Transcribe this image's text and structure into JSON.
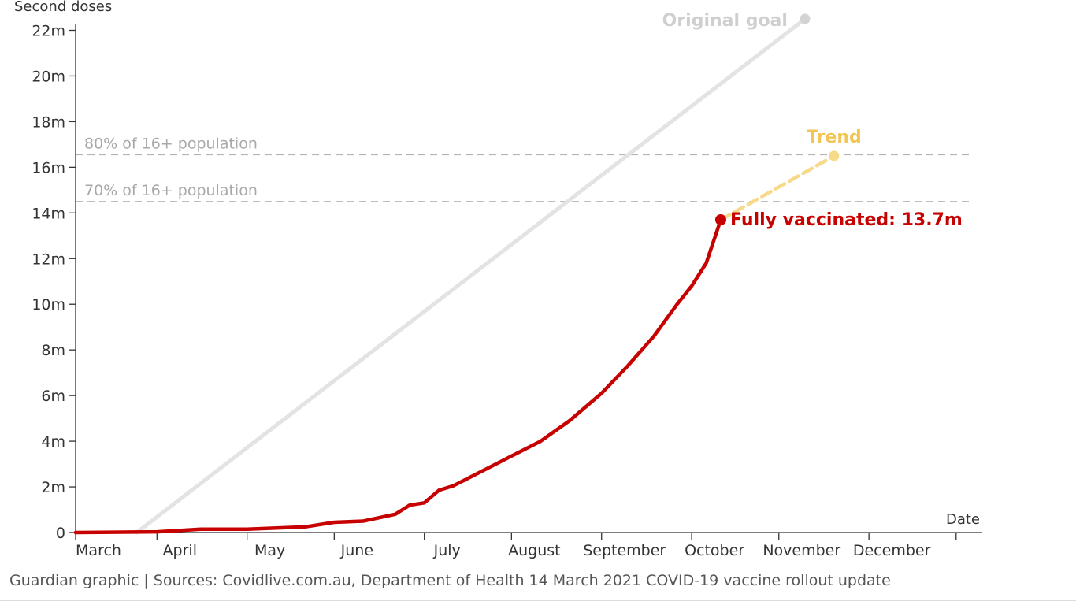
{
  "chart_data": {
    "type": "line",
    "ylabel": "Second doses",
    "xlabel": "Date",
    "ylim": [
      0,
      22500000
    ],
    "yticks": [
      {
        "value": 0,
        "label": "0"
      },
      {
        "value": 2000000,
        "label": "2m"
      },
      {
        "value": 4000000,
        "label": "4m"
      },
      {
        "value": 6000000,
        "label": "6m"
      },
      {
        "value": 8000000,
        "label": "8m"
      },
      {
        "value": 10000000,
        "label": "10m"
      },
      {
        "value": 12000000,
        "label": "12m"
      },
      {
        "value": 14000000,
        "label": "14m"
      },
      {
        "value": 16000000,
        "label": "16m"
      },
      {
        "value": 18000000,
        "label": "18m"
      },
      {
        "value": 20000000,
        "label": "20m"
      },
      {
        "value": 22000000,
        "label": "22m"
      }
    ],
    "xlim": [
      "2021-02-22",
      "2021-12-31"
    ],
    "xticks": [
      {
        "date": "2021-02-22",
        "label": "March"
      },
      {
        "date": "2021-03-22",
        "label": "April"
      },
      {
        "date": "2021-04-22",
        "label": "May"
      },
      {
        "date": "2021-05-22",
        "label": "June"
      },
      {
        "date": "2021-06-22",
        "label": "July"
      },
      {
        "date": "2021-07-22",
        "label": "August"
      },
      {
        "date": "2021-08-22",
        "label": "September"
      },
      {
        "date": "2021-09-22",
        "label": "October"
      },
      {
        "date": "2021-10-22",
        "label": "November"
      },
      {
        "date": "2021-11-22",
        "label": "December"
      },
      {
        "date": "2021-12-22",
        "label": ""
      }
    ],
    "reference_lines": [
      {
        "label": "80% of 16+ population",
        "value": 16550000
      },
      {
        "label": "70% of 16+ population",
        "value": 14500000
      }
    ],
    "series": [
      {
        "name": "Original goal",
        "color": "#e3e3e3",
        "points": [
          {
            "date": "2021-03-15",
            "value": 0
          },
          {
            "date": "2021-10-31",
            "value": 22500000
          }
        ]
      },
      {
        "name": "Trend",
        "color": "#f7d98a",
        "points": [
          {
            "date": "2021-10-02",
            "value": 13700000
          },
          {
            "date": "2021-11-10",
            "value": 16500000
          }
        ]
      },
      {
        "name": "Fully vaccinated: 13.7m",
        "color": "#c70000",
        "points": [
          {
            "date": "2021-02-22",
            "value": 0
          },
          {
            "date": "2021-03-22",
            "value": 30000
          },
          {
            "date": "2021-04-06",
            "value": 150000
          },
          {
            "date": "2021-04-22",
            "value": 150000
          },
          {
            "date": "2021-05-12",
            "value": 250000
          },
          {
            "date": "2021-05-22",
            "value": 450000
          },
          {
            "date": "2021-06-01",
            "value": 500000
          },
          {
            "date": "2021-06-12",
            "value": 800000
          },
          {
            "date": "2021-06-17",
            "value": 1200000
          },
          {
            "date": "2021-06-22",
            "value": 1300000
          },
          {
            "date": "2021-06-27",
            "value": 1850000
          },
          {
            "date": "2021-07-02",
            "value": 2050000
          },
          {
            "date": "2021-07-12",
            "value": 2700000
          },
          {
            "date": "2021-07-22",
            "value": 3350000
          },
          {
            "date": "2021-08-01",
            "value": 4000000
          },
          {
            "date": "2021-08-11",
            "value": 4900000
          },
          {
            "date": "2021-08-22",
            "value": 6100000
          },
          {
            "date": "2021-08-31",
            "value": 7300000
          },
          {
            "date": "2021-09-09",
            "value": 8600000
          },
          {
            "date": "2021-09-17",
            "value": 10000000
          },
          {
            "date": "2021-09-22",
            "value": 10800000
          },
          {
            "date": "2021-09-27",
            "value": 11800000
          },
          {
            "date": "2021-10-02",
            "value": 13700000
          }
        ]
      }
    ],
    "annotations": {
      "original_goal": "Original goal",
      "trend": "Trend",
      "fully_vaccinated": "Fully vaccinated: 13.7m"
    }
  },
  "source": "Guardian graphic | Sources: Covidlive.com.au, Department of Health 14 March 2021 COVID-19 vaccine rollout update",
  "colors": {
    "goal": "#e3e3e3",
    "goal_label": "#cfcfcf",
    "trend": "#f7d98a",
    "trend_label": "#f2c555",
    "actual": "#c70000",
    "reference": "#b5b5b5",
    "axis": "#333333"
  }
}
